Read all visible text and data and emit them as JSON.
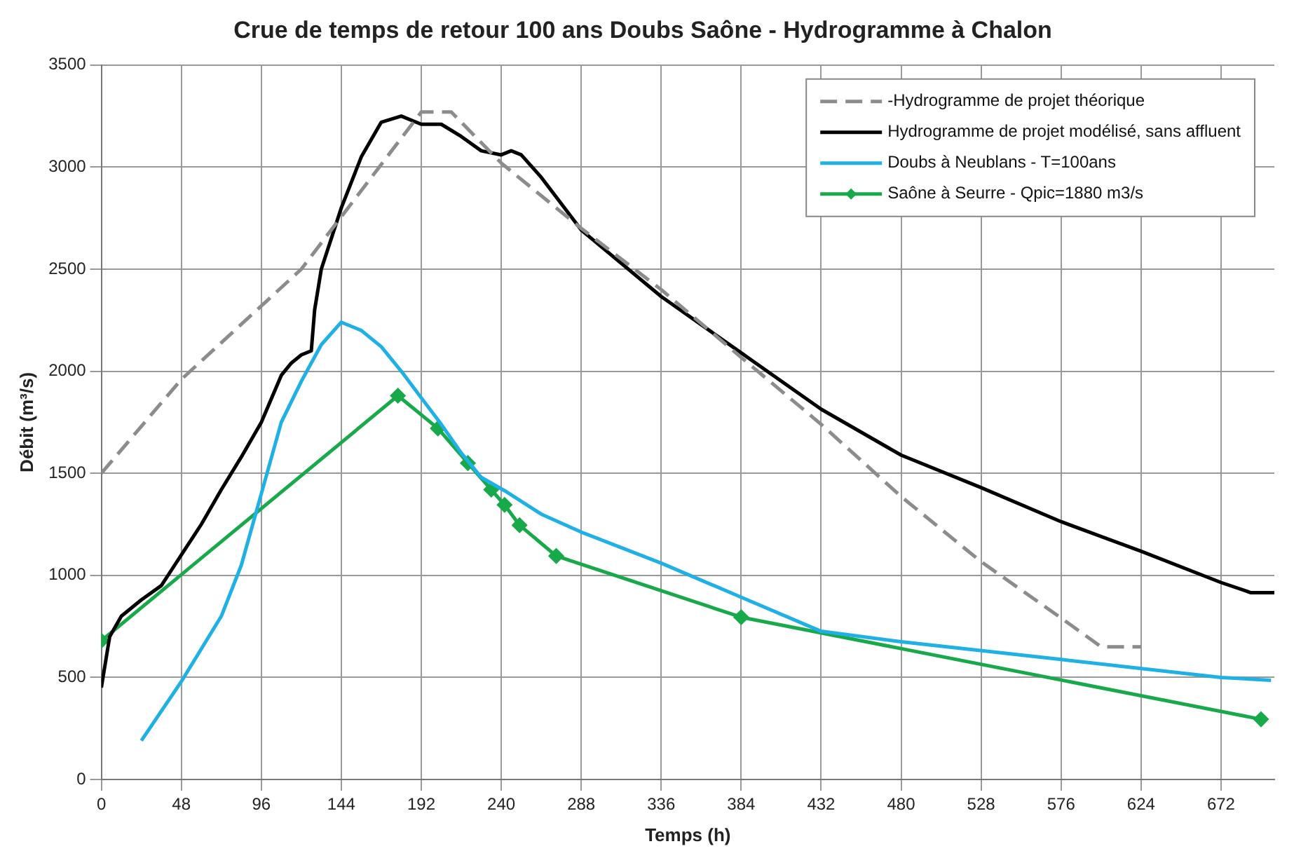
{
  "chart_data": {
    "type": "line",
    "title": "Crue de temps de retour 100 ans Doubs Saône - Hydrogramme à Chalon",
    "xlabel": "Temps (h)",
    "ylabel": "Débit (m³/s)",
    "xlim": [
      0,
      704
    ],
    "xticks": [
      0,
      48,
      96,
      144,
      192,
      240,
      288,
      336,
      384,
      432,
      480,
      528,
      576,
      624,
      672
    ],
    "ylim": [
      0,
      3500
    ],
    "yticks": [
      0,
      500,
      1000,
      1500,
      2000,
      2500,
      3000,
      3500
    ],
    "grid": true,
    "legend": "top right",
    "series": [
      {
        "name": "-Hydrogramme de projet théorique",
        "color": "#8c8c8c",
        "line_style": "dashed",
        "marker": "none",
        "x": [
          0,
          48,
          120,
          192,
          210,
          240,
          288,
          336,
          384,
          432,
          480,
          528,
          576,
          600,
          624
        ],
        "values": [
          1500,
          1960,
          2500,
          3270,
          3270,
          3020,
          2700,
          2400,
          2068,
          1740,
          1386,
          1067,
          791,
          650,
          650
        ]
      },
      {
        "name": "Hydrogramme de projet modélisé, sans affluent",
        "color": "#000000",
        "line_style": "solid",
        "marker": "none",
        "x": [
          0,
          5,
          12,
          24,
          36,
          48,
          60,
          72,
          84,
          96,
          108,
          114,
          120,
          126,
          128,
          132,
          144,
          156,
          168,
          180,
          192,
          204,
          216,
          228,
          240,
          246,
          252,
          264,
          288,
          336,
          384,
          432,
          480,
          528,
          576,
          624,
          672,
          690,
          704
        ],
        "values": [
          450,
          700,
          800,
          880,
          950,
          1100,
          1250,
          1420,
          1580,
          1750,
          1980,
          2040,
          2080,
          2100,
          2300,
          2500,
          2800,
          3050,
          3220,
          3250,
          3210,
          3210,
          3150,
          3080,
          3060,
          3080,
          3060,
          2950,
          2692,
          2366,
          2090,
          1814,
          1589,
          1430,
          1263,
          1118,
          965,
          915,
          915
        ]
      },
      {
        "name": "Doubs à Neublans - T=100ans",
        "color": "#1fb0e6",
        "line_style": "solid",
        "marker": "none",
        "x": [
          24,
          48,
          72,
          84,
          96,
          108,
          120,
          132,
          144,
          156,
          168,
          180,
          192,
          204,
          216,
          228,
          242,
          264,
          288,
          336,
          384,
          432,
          480,
          576,
          672,
          702
        ],
        "values": [
          190,
          480,
          800,
          1050,
          1400,
          1750,
          1950,
          2130,
          2240,
          2200,
          2120,
          2000,
          1870,
          1740,
          1600,
          1480,
          1415,
          1300,
          1212,
          1060,
          893,
          726,
          675,
          588,
          500,
          486
        ]
      },
      {
        "name": "Saône à Seurre - Qpic=1880 m3/s",
        "color": "#18a94b",
        "line_style": "solid",
        "marker": "diamond",
        "x": [
          0,
          178,
          202,
          220,
          234,
          242,
          251,
          273,
          384,
          696
        ],
        "values": [
          680,
          1880,
          1720,
          1550,
          1420,
          1345,
          1246,
          1095,
          795,
          295
        ]
      }
    ]
  }
}
